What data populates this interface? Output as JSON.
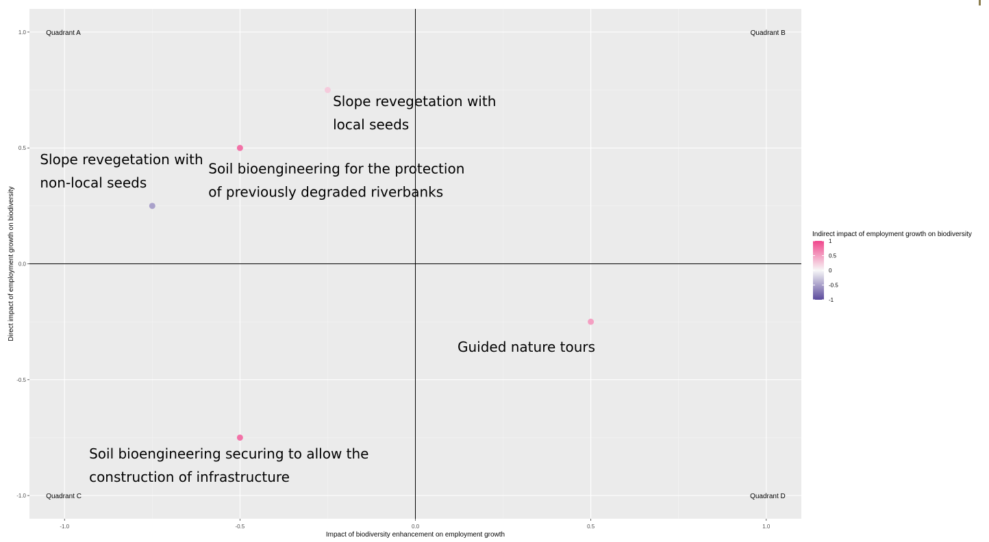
{
  "chart_data": {
    "type": "scatter",
    "xlabel": "Impact of biodiversity enhancement on employment growth",
    "ylabel": "Direct impact of employment growth on biodiversity",
    "xlim": [
      -1.1,
      1.1
    ],
    "ylim": [
      -1.1,
      1.1
    ],
    "x_ticks": [
      {
        "value": -1.0,
        "label": "-1.0"
      },
      {
        "value": -0.5,
        "label": "-0.5"
      },
      {
        "value": 0.0,
        "label": "0.0"
      },
      {
        "value": 0.5,
        "label": "0.5"
      },
      {
        "value": 1.0,
        "label": "1.0"
      }
    ],
    "y_ticks": [
      {
        "value": -1.0,
        "label": "-1.0"
      },
      {
        "value": -0.5,
        "label": "-0.5"
      },
      {
        "value": 0.0,
        "label": "0.0"
      },
      {
        "value": 0.5,
        "label": "0.5"
      },
      {
        "value": 1.0,
        "label": "1.0"
      }
    ],
    "minor_gridlines": [
      -0.75,
      -0.25,
      0.25,
      0.75
    ],
    "grid": true,
    "reference_lines": {
      "x": 0,
      "y": 0
    },
    "points": [
      {
        "x": -0.75,
        "y": 0.25,
        "color_value": -0.5
      },
      {
        "x": -0.5,
        "y": 0.5,
        "color_value": 0.75
      },
      {
        "x": -0.25,
        "y": 0.75,
        "color_value": 0.25
      },
      {
        "x": 0.5,
        "y": -0.25,
        "color_value": 0.5
      },
      {
        "x": -0.5,
        "y": -0.75,
        "color_value": 0.75
      }
    ],
    "quadrant_labels": [
      {
        "text": "Quadrant A",
        "x": -1.0,
        "y": 1.0,
        "anchor": "start"
      },
      {
        "text": "Quadrant B",
        "x": 1.0,
        "y": 1.0,
        "anchor": "end"
      },
      {
        "text": "Quadrant C",
        "x": -1.0,
        "y": -1.0,
        "anchor": "start"
      },
      {
        "text": "Quadrant D",
        "x": 1.0,
        "y": -1.0,
        "anchor": "end"
      }
    ],
    "annotations": [
      {
        "lines": [
          "Slope revegetation with",
          "local seeds"
        ],
        "x": -0.235,
        "y": 0.68,
        "anchor": "start"
      },
      {
        "lines": [
          "Slope revegetation with",
          "non-local seeds"
        ],
        "x": -1.07,
        "y": 0.43,
        "anchor": "start"
      },
      {
        "lines": [
          "Soil bioengineering for the protection",
          "of previously degraded riverbanks"
        ],
        "x": -0.59,
        "y": 0.39,
        "anchor": "start"
      },
      {
        "lines": [
          "Guided nature tours"
        ],
        "x": 0.12,
        "y": -0.38,
        "anchor": "start"
      },
      {
        "lines": [
          "Soil bioengineering securing to allow the",
          "construction of infrastructure"
        ],
        "x": -0.93,
        "y": -0.84,
        "anchor": "start"
      }
    ],
    "legend": {
      "title": "Indirect impact of employment growth on biodiversity",
      "placement": "right",
      "range": [
        -1,
        1
      ],
      "ticks": [
        {
          "value": 1,
          "label": "1"
        },
        {
          "value": 0.5,
          "label": "0.5"
        },
        {
          "value": 0,
          "label": "0"
        },
        {
          "value": -0.5,
          "label": "-0.5"
        },
        {
          "value": -1,
          "label": "-1"
        }
      ],
      "low_color": "#5b4a9c",
      "mid_color": "#f7f7f7",
      "high_color": "#f0468c"
    },
    "colors": {
      "panel_background": "#ebebeb",
      "major_grid": "#ffffff",
      "minor_grid": "#f5f5f5",
      "reference_line": "#000000"
    }
  }
}
